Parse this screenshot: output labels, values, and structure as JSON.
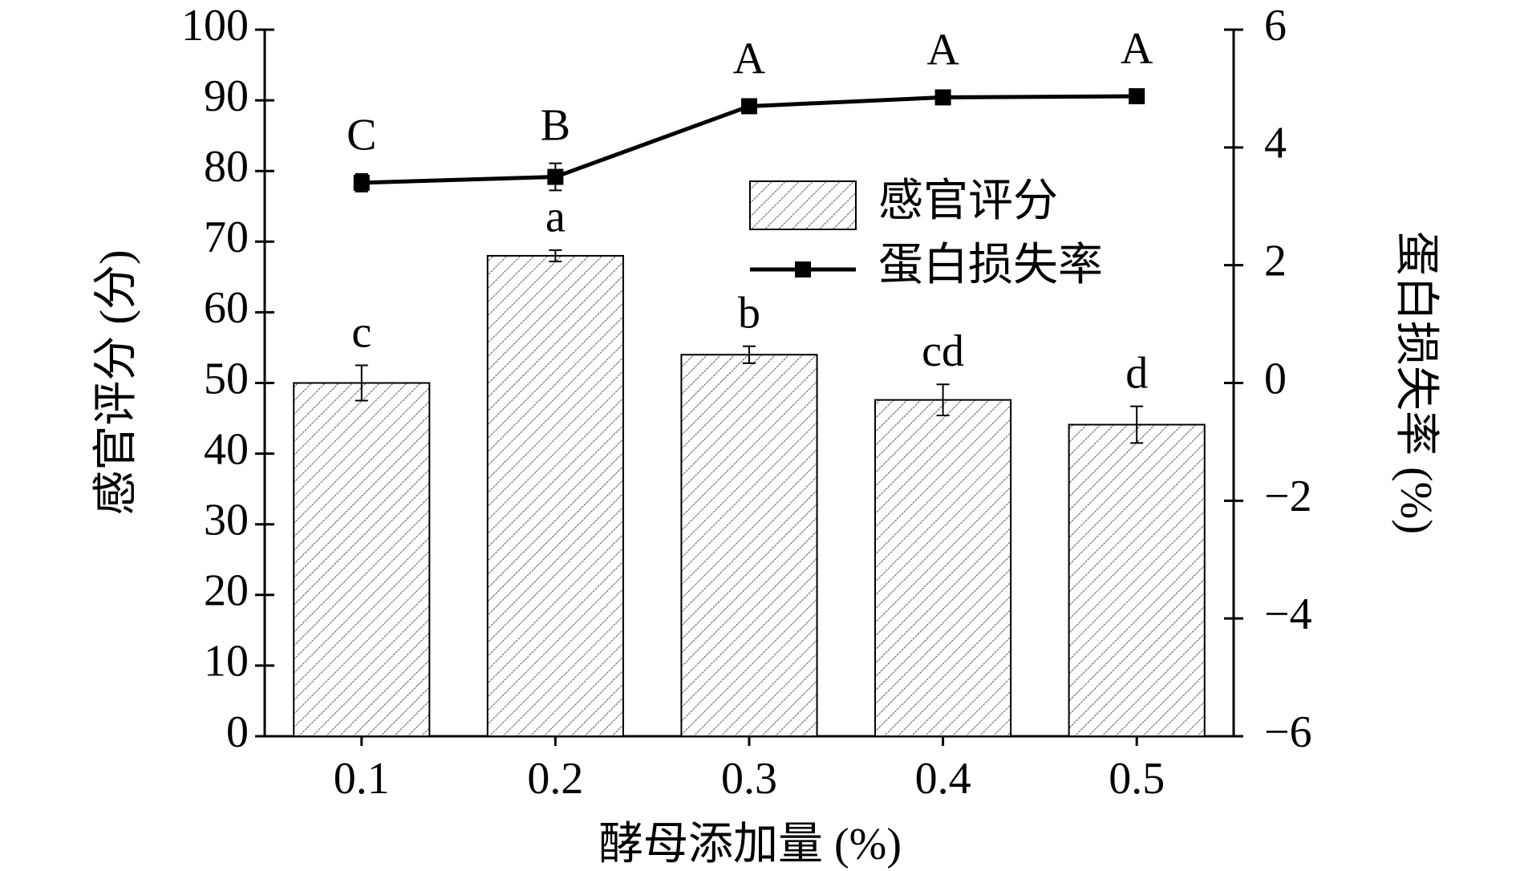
{
  "chart_data": {
    "type": "bar",
    "categories": [
      "0.1",
      "0.2",
      "0.3",
      "0.4",
      "0.5"
    ],
    "xlabel": "酵母添加量 (%)",
    "ylabel": "感官评分 (分)",
    "y2label": "蛋白损失率 (%)",
    "series": [
      {
        "name": "感官评分",
        "type": "bar",
        "color": "#000000",
        "values": [
          50,
          68,
          54,
          47.6,
          44.1
        ],
        "errors": [
          2.5,
          0.8,
          1.2,
          2.2,
          2.6
        ],
        "labels": [
          "c",
          "a",
          "b",
          "cd",
          "d"
        ]
      },
      {
        "name": "蛋白损失率",
        "type": "line",
        "axis": "y2",
        "color": "#000000",
        "values": [
          3.4,
          3.5,
          4.7,
          4.85,
          4.87
        ],
        "errors": [
          0.15,
          0.23,
          0.12,
          0.08,
          0.05
        ],
        "labels": [
          "C",
          "B",
          "A",
          "A",
          "A"
        ]
      }
    ],
    "ylim": [
      0,
      100
    ],
    "yticks": [
      0,
      10,
      20,
      30,
      40,
      50,
      60,
      70,
      80,
      90,
      100
    ],
    "y2lim": [
      -6,
      6
    ],
    "y2ticks": [
      {
        "value": -6,
        "label": "−6"
      },
      {
        "value": -4,
        "label": "−4"
      },
      {
        "value": -2,
        "label": "−2"
      },
      0,
      2,
      4,
      6
    ],
    "legend": "upper right"
  }
}
